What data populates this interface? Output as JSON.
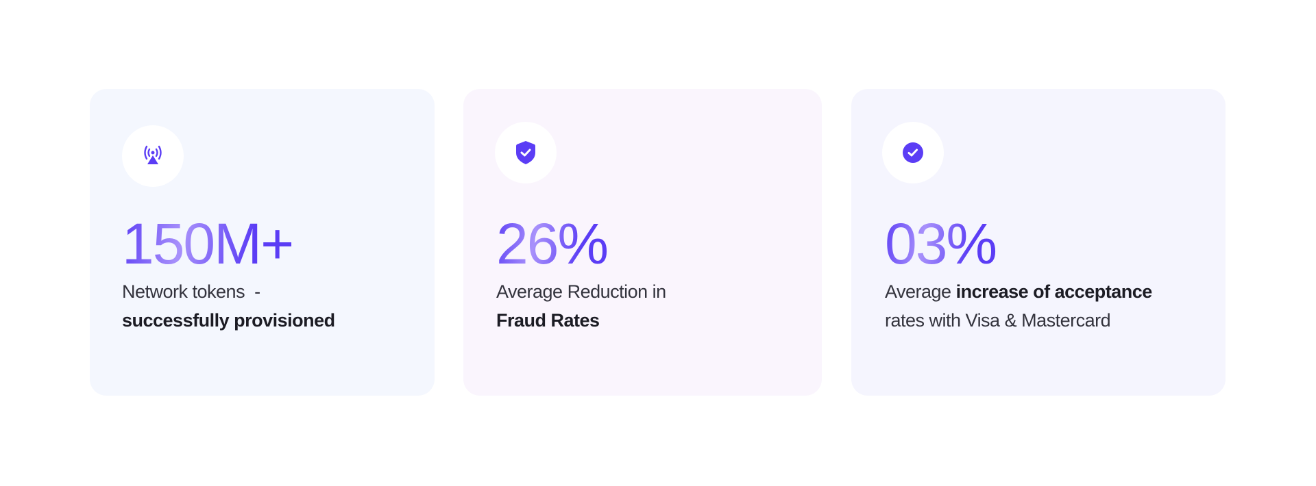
{
  "accent_color": "#5b3df5",
  "cards": [
    {
      "icon": "broadcast-tower-icon",
      "stat": "150M+",
      "desc_regular": "Network tokens  -",
      "desc_bold": "successfully provisioned",
      "background": "#f4f7fe"
    },
    {
      "icon": "shield-check-icon",
      "stat": "26%",
      "desc_regular": "Average Reduction in",
      "desc_bold": "Fraud Rates",
      "background": "#faf5fd"
    },
    {
      "icon": "check-circle-icon",
      "stat": "03%",
      "desc_regular": "Average ",
      "desc_bold": "increase of acceptance",
      "desc_tail": "rates with Visa & Mastercard",
      "background": "#f5f5fe"
    }
  ]
}
